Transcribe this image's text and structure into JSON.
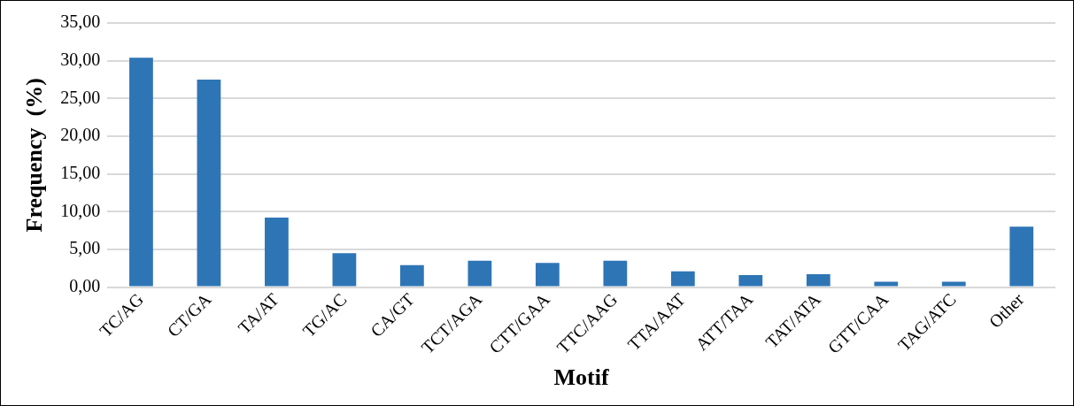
{
  "chart_data": {
    "type": "bar",
    "xlabel": "Motif",
    "ylabel": "Frequency  (%)",
    "categories": [
      "TC/AG",
      "CT/GA",
      "TA/AT",
      "TG/AC",
      "CA/GT",
      "TCT/AGA",
      "CTT/GAA",
      "TTC/AAG",
      "TTA/AAT",
      "ATT/TAA",
      "TAT/ATA",
      "GTT/CAA",
      "TAG/ATC",
      "Other"
    ],
    "values": [
      30.4,
      27.5,
      9.2,
      4.5,
      2.9,
      3.5,
      3.2,
      3.5,
      2.1,
      1.6,
      1.7,
      0.7,
      0.7,
      8.0
    ],
    "color": "#2e75b6",
    "ylim": [
      0,
      35
    ],
    "yticks": [
      {
        "value": 0,
        "label": "0,00"
      },
      {
        "value": 5,
        "label": "5,00"
      },
      {
        "value": 10,
        "label": "10,00"
      },
      {
        "value": 15,
        "label": "15,00"
      },
      {
        "value": 20,
        "label": "20,00"
      },
      {
        "value": 25,
        "label": "25,00"
      },
      {
        "value": 30,
        "label": "30,00"
      },
      {
        "value": 35,
        "label": "35,00"
      }
    ],
    "grid": "y"
  }
}
